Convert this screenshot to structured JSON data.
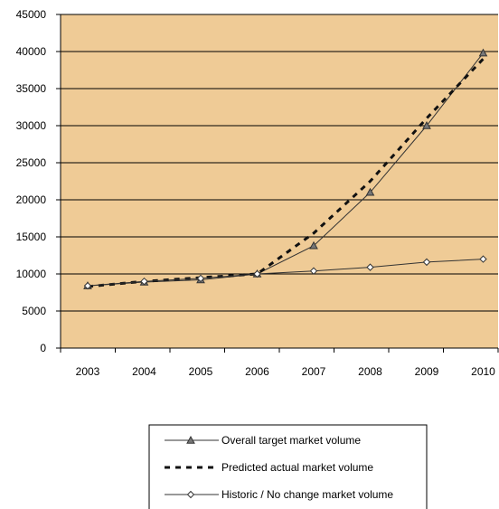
{
  "chart_data": {
    "type": "line",
    "title": "",
    "xlabel": "",
    "ylabel": "",
    "categories": [
      "2003",
      "2004",
      "2005",
      "2006",
      "2007",
      "2008",
      "2009",
      "2010"
    ],
    "ylim": [
      0,
      45000
    ],
    "yticks": [
      0,
      5000,
      10000,
      15000,
      20000,
      25000,
      30000,
      35000,
      40000,
      45000
    ],
    "grid": "horizontal",
    "legend_position": "bottom",
    "plot_background": "#EFCB96",
    "series": [
      {
        "name": "Overall target market volume",
        "style": "solid-triangle",
        "color": "#333333",
        "values": [
          8400,
          8900,
          9200,
          10000,
          13800,
          21000,
          30000,
          39800
        ]
      },
      {
        "name": "Predicted actual market volume",
        "style": "dashed",
        "color": "#111111",
        "values": [
          8300,
          9000,
          9500,
          10000,
          15500,
          22500,
          31000,
          39000
        ]
      },
      {
        "name": "Historic / No change market volume",
        "style": "solid-diamond",
        "color": "#333333",
        "values": [
          8400,
          9000,
          9400,
          10000,
          10400,
          10900,
          11600,
          12000
        ]
      }
    ]
  }
}
